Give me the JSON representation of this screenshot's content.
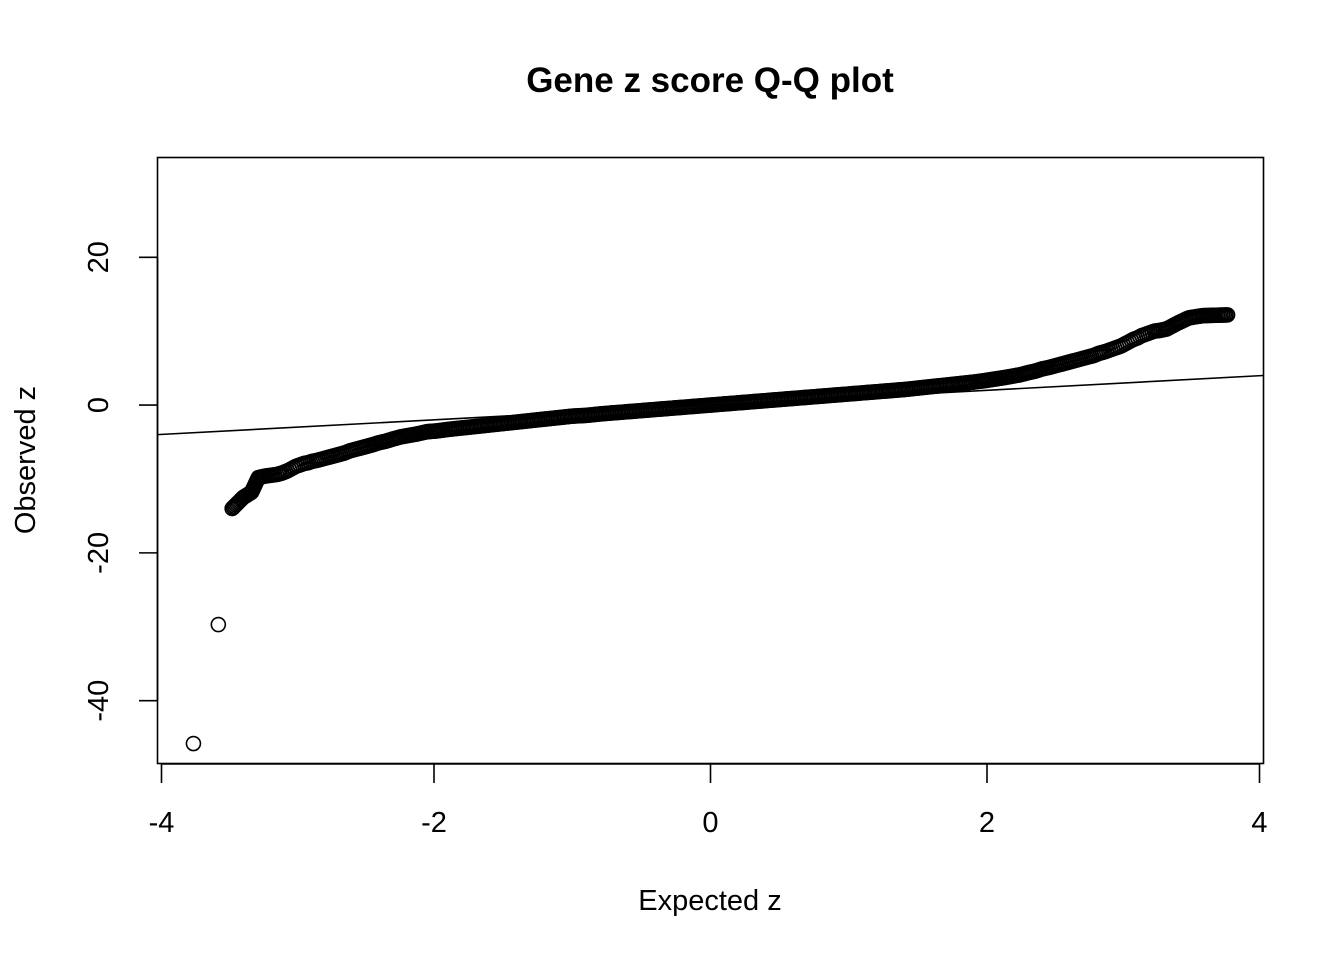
{
  "chart_data": {
    "type": "scatter",
    "title": "Gene z score Q-Q plot",
    "xlabel": "Expected z",
    "ylabel": "Observed z",
    "xlim": [
      -4,
      4
    ],
    "ylim": [
      -48.5,
      33.5
    ],
    "xticks": [
      -4,
      -2,
      0,
      2,
      4
    ],
    "yticks": [
      -40,
      -20,
      0,
      20
    ],
    "x_tick_labels": [
      "-4",
      "-2",
      "0",
      "2",
      "4"
    ],
    "y_tick_labels": [
      "-40",
      "-20",
      "0",
      "20"
    ],
    "grid": false,
    "legend": null,
    "reference_line": {
      "intercept": 0,
      "slope": 1
    },
    "series": [
      {
        "marker": "open-circle",
        "points": [
          [
            -3.74,
            -45.8
          ],
          [
            -3.56,
            -29.7
          ],
          [
            -3.46,
            -14.0
          ],
          [
            -3.38,
            -12.5
          ],
          [
            -3.32,
            -11.8
          ],
          [
            -3.27,
            -9.8
          ],
          [
            -3.22,
            -9.6
          ],
          [
            -3.18,
            -9.5
          ],
          [
            -3.14,
            -9.4
          ],
          [
            -3.1,
            -9.2
          ],
          [
            -3.06,
            -8.9
          ],
          [
            -3.03,
            -8.6
          ],
          [
            -3.0,
            -8.3
          ],
          [
            -2.97,
            -8.1
          ],
          [
            -2.94,
            -7.9
          ],
          [
            -2.91,
            -7.8
          ],
          [
            -2.88,
            -7.6
          ],
          [
            -2.85,
            -7.5
          ],
          [
            -2.81,
            -7.3
          ],
          [
            -2.77,
            -7.1
          ],
          [
            -2.73,
            -6.9
          ],
          [
            -2.69,
            -6.7
          ],
          [
            -2.65,
            -6.5
          ],
          [
            -2.61,
            -6.2
          ],
          [
            -2.57,
            -6.0
          ],
          [
            -2.53,
            -5.8
          ],
          [
            -2.49,
            -5.6
          ],
          [
            -2.45,
            -5.4
          ],
          [
            -2.4,
            -5.1
          ],
          [
            -2.35,
            -4.9
          ],
          [
            -2.3,
            -4.6
          ],
          [
            -2.24,
            -4.3
          ],
          [
            -2.18,
            -4.1
          ],
          [
            -2.12,
            -3.9
          ],
          [
            -2.05,
            -3.6
          ],
          [
            -1.98,
            -3.5
          ],
          [
            -1.9,
            -3.3
          ],
          [
            -1.8,
            -3.1
          ],
          [
            -1.7,
            -2.9
          ],
          [
            -1.6,
            -2.7
          ],
          [
            -1.5,
            -2.5
          ],
          [
            -1.4,
            -2.3
          ],
          [
            -1.3,
            -2.1
          ],
          [
            -1.2,
            -1.9
          ],
          [
            -1.1,
            -1.7
          ],
          [
            -1.0,
            -1.5
          ],
          [
            -0.9,
            -1.4
          ],
          [
            -0.8,
            -1.2
          ],
          [
            -0.7,
            -1.05
          ],
          [
            -0.6,
            -0.9
          ],
          [
            -0.5,
            -0.75
          ],
          [
            -0.4,
            -0.6
          ],
          [
            -0.3,
            -0.45
          ],
          [
            -0.2,
            -0.3
          ],
          [
            -0.1,
            -0.15
          ],
          [
            0.0,
            0.0
          ],
          [
            0.1,
            0.15
          ],
          [
            0.2,
            0.3
          ],
          [
            0.3,
            0.45
          ],
          [
            0.4,
            0.6
          ],
          [
            0.5,
            0.75
          ],
          [
            0.6,
            0.9
          ],
          [
            0.7,
            1.05
          ],
          [
            0.8,
            1.2
          ],
          [
            0.9,
            1.35
          ],
          [
            1.0,
            1.5
          ],
          [
            1.1,
            1.65
          ],
          [
            1.2,
            1.8
          ],
          [
            1.3,
            1.95
          ],
          [
            1.4,
            2.1
          ],
          [
            1.5,
            2.3
          ],
          [
            1.6,
            2.5
          ],
          [
            1.7,
            2.7
          ],
          [
            1.8,
            2.9
          ],
          [
            1.9,
            3.1
          ],
          [
            1.98,
            3.3
          ],
          [
            2.05,
            3.5
          ],
          [
            2.12,
            3.7
          ],
          [
            2.18,
            3.9
          ],
          [
            2.24,
            4.1
          ],
          [
            2.3,
            4.4
          ],
          [
            2.35,
            4.6
          ],
          [
            2.4,
            4.9
          ],
          [
            2.45,
            5.1
          ],
          [
            2.49,
            5.3
          ],
          [
            2.53,
            5.5
          ],
          [
            2.57,
            5.7
          ],
          [
            2.61,
            5.9
          ],
          [
            2.65,
            6.1
          ],
          [
            2.69,
            6.3
          ],
          [
            2.73,
            6.5
          ],
          [
            2.77,
            6.7
          ],
          [
            2.81,
            7.0
          ],
          [
            2.85,
            7.2
          ],
          [
            2.88,
            7.4
          ],
          [
            2.91,
            7.6
          ],
          [
            2.94,
            7.8
          ],
          [
            2.97,
            8.0
          ],
          [
            3.0,
            8.3
          ],
          [
            3.03,
            8.6
          ],
          [
            3.06,
            8.9
          ],
          [
            3.09,
            9.1
          ],
          [
            3.12,
            9.4
          ],
          [
            3.15,
            9.6
          ],
          [
            3.18,
            9.8
          ],
          [
            3.21,
            10.0
          ],
          [
            3.25,
            10.1
          ],
          [
            3.3,
            10.3
          ],
          [
            3.38,
            11.1
          ],
          [
            3.46,
            11.8
          ],
          [
            3.56,
            12.1
          ],
          [
            3.74,
            12.2
          ]
        ]
      }
    ]
  }
}
